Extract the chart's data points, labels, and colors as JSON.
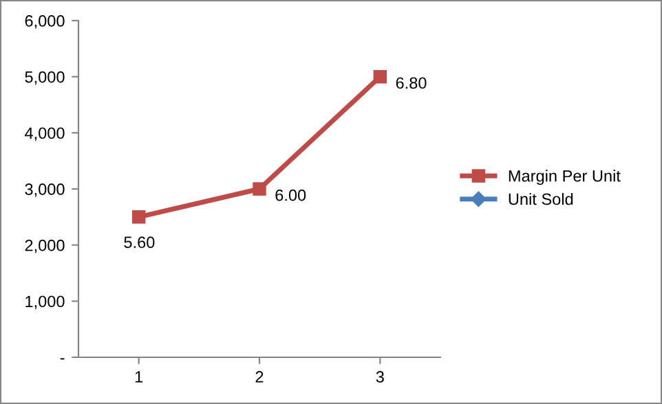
{
  "chart_data": {
    "type": "line",
    "categories": [
      "1",
      "2",
      "3"
    ],
    "series": [
      {
        "name": "Margin Per Unit",
        "color": "#be4b48",
        "values": [
          2500,
          3000,
          5000
        ],
        "marker": "square"
      },
      {
        "name": "Unit Sold",
        "color": "#4a7ebb",
        "values": [
          null,
          null,
          null
        ],
        "marker": "diamond"
      }
    ],
    "ylim": [
      0,
      6000
    ],
    "yticks": [
      {
        "value": 0,
        "label": "-"
      },
      {
        "value": 1000,
        "label": "1,000"
      },
      {
        "value": 2000,
        "label": "2,000"
      },
      {
        "value": 3000,
        "label": "3,000"
      },
      {
        "value": 4000,
        "label": "4,000"
      },
      {
        "value": 5000,
        "label": "5,000"
      },
      {
        "value": 6000,
        "label": "6,000"
      }
    ],
    "grid": false,
    "legend": "right",
    "annotations": [
      {
        "text": "5.60",
        "x": "1",
        "y": 2500
      },
      {
        "text": "6.00",
        "x": "2",
        "y": 3000
      },
      {
        "text": "6.80",
        "x": "3",
        "y": 5000
      }
    ]
  }
}
